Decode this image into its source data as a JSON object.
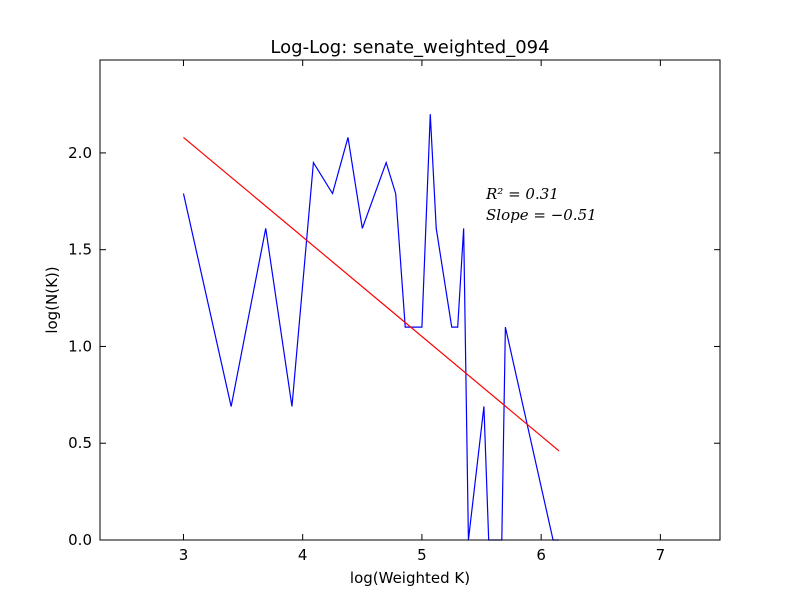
{
  "chart_data": {
    "type": "line",
    "title": "Log-Log: senate_weighted_094",
    "xlabel": "log(Weighted K)",
    "ylabel": "log(N(K))",
    "xlim": [
      2.3,
      7.5
    ],
    "ylim": [
      0.0,
      2.48
    ],
    "xticks": [
      3,
      4,
      5,
      6,
      7
    ],
    "yticks": [
      0.0,
      0.5,
      1.0,
      1.5,
      2.0
    ],
    "xtick_labels": [
      "3",
      "4",
      "5",
      "6",
      "7"
    ],
    "ytick_labels": [
      "0.0",
      "0.5",
      "1.0",
      "1.5",
      "2.0"
    ],
    "grid": false,
    "series": [
      {
        "color": "#0000ff",
        "x": [
          3.0,
          3.4,
          3.69,
          3.91,
          4.09,
          4.25,
          4.38,
          4.5,
          4.7,
          4.78,
          4.86,
          5.0,
          5.07,
          5.12,
          5.25,
          5.3,
          5.35,
          5.39,
          5.52,
          5.56,
          5.67,
          5.7,
          6.1,
          6.15
        ],
        "y": [
          1.79,
          0.69,
          1.61,
          0.69,
          1.95,
          1.79,
          2.08,
          1.61,
          1.95,
          1.79,
          1.1,
          1.1,
          2.2,
          1.61,
          1.1,
          1.1,
          1.61,
          0.0,
          0.69,
          0.0,
          0.0,
          1.1,
          0.0,
          0.0
        ]
      },
      {
        "color": "#ff0000",
        "x": [
          3.0,
          6.15
        ],
        "y": [
          2.08,
          0.46
        ]
      }
    ],
    "annotations": {
      "r2": "R² = 0.31",
      "slope": "Slope = −0.51"
    }
  }
}
